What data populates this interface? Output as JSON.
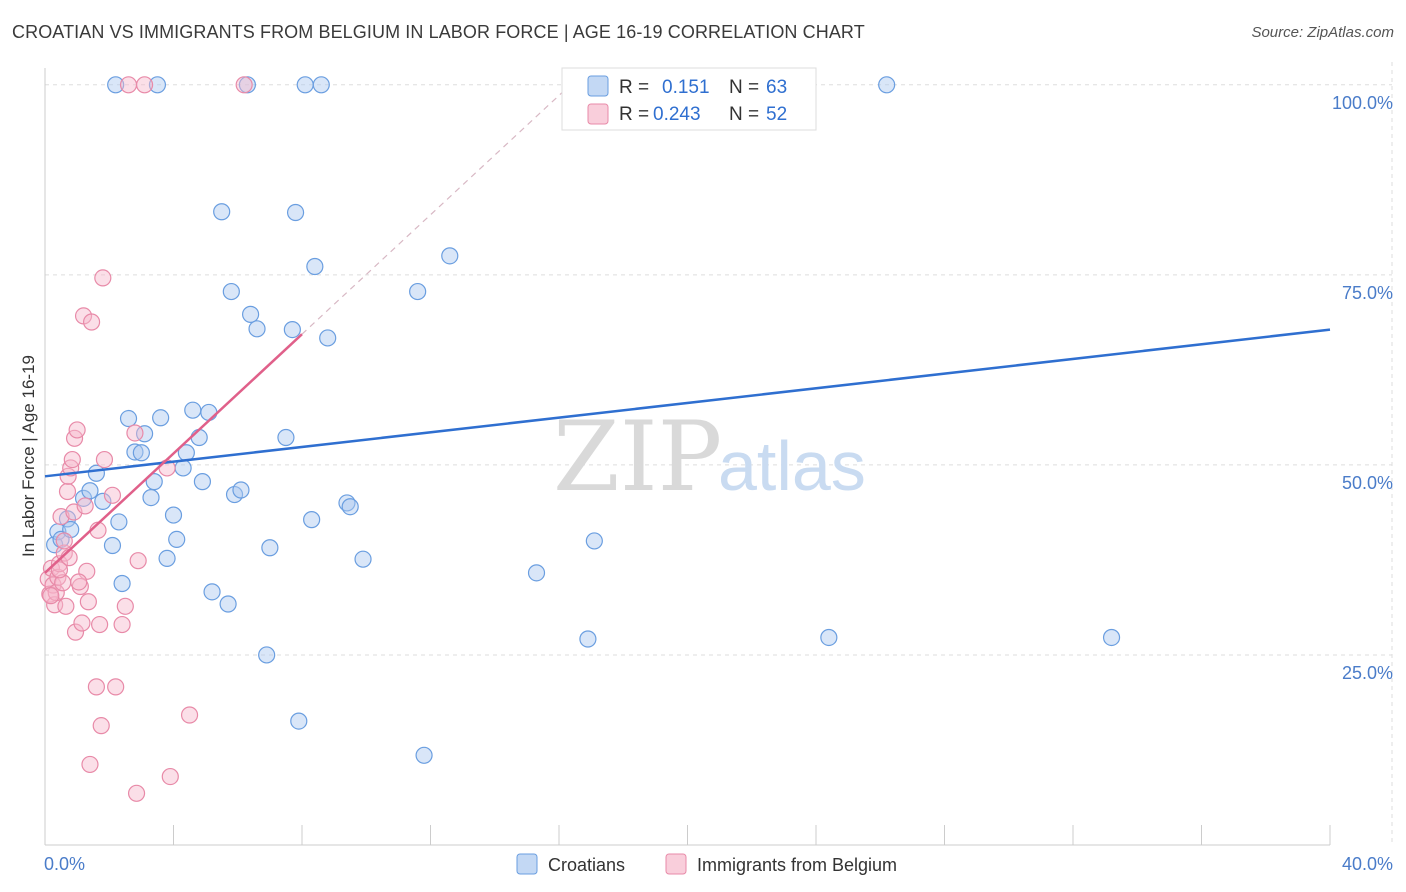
{
  "title": "CROATIAN VS IMMIGRANTS FROM BELGIUM IN LABOR FORCE | AGE 16-19 CORRELATION CHART",
  "source": "Source: ZipAtlas.com",
  "watermark": {
    "zip": "ZIP",
    "atlas": "atlas"
  },
  "legend": {
    "rows": [
      {
        "r_label": "R =",
        "r_value": "0.151",
        "n_label": "N =",
        "n_value": "63"
      },
      {
        "r_label": "R =",
        "r_value": "0.243",
        "n_label": "N =",
        "n_value": "52"
      }
    ]
  },
  "bottom_legend": [
    "Croatians",
    "Immigrants from Belgium"
  ],
  "colors": {
    "blue_fill": "#aac8ef",
    "blue_stroke": "#6a9ee0",
    "blue_line": "#2f6fd0",
    "pink_fill": "#f6b9cc",
    "pink_stroke": "#e88aa8",
    "pink_line": "#e0608a",
    "grid": "#dddddd",
    "tick_label": "#4a7cc9"
  },
  "chart_data": {
    "type": "scatter",
    "title": "CROATIAN VS IMMIGRANTS FROM BELGIUM IN LABOR FORCE | AGE 16-19 CORRELATION CHART",
    "xlabel": "",
    "ylabel": "In Labor Force | Age 16-19",
    "xlim": [
      0,
      40
    ],
    "ylim": [
      0,
      103
    ],
    "x_tick_labels": [
      "0.0%",
      "40.0%"
    ],
    "y_ticks": [
      25,
      50,
      75,
      100
    ],
    "y_tick_labels": [
      "25.0%",
      "50.0%",
      "75.0%",
      "100.0%"
    ],
    "grid": true,
    "legend_position": "top-center",
    "series": [
      {
        "name": "Croatians",
        "color": "#6a9ee0",
        "r": 0.151,
        "n": 63,
        "trend": {
          "x": [
            0,
            40
          ],
          "y": [
            48.5,
            67.8
          ]
        },
        "points": [
          [
            0.3,
            39.5
          ],
          [
            0.4,
            41.2
          ],
          [
            0.5,
            40.2
          ],
          [
            0.7,
            42.9
          ],
          [
            0.8,
            41.5
          ],
          [
            1.2,
            45.6
          ],
          [
            1.4,
            46.6
          ],
          [
            1.6,
            48.9
          ],
          [
            1.8,
            45.2
          ],
          [
            2.1,
            39.4
          ],
          [
            2.3,
            42.5
          ],
          [
            2.4,
            34.4
          ],
          [
            2.6,
            56.1
          ],
          [
            2.8,
            51.7
          ],
          [
            3.0,
            51.6
          ],
          [
            3.1,
            54.1
          ],
          [
            3.3,
            45.7
          ],
          [
            3.4,
            47.8
          ],
          [
            3.6,
            56.2
          ],
          [
            3.8,
            37.7
          ],
          [
            4.0,
            43.4
          ],
          [
            4.1,
            40.2
          ],
          [
            4.3,
            49.6
          ],
          [
            4.4,
            51.6
          ],
          [
            4.6,
            57.2
          ],
          [
            4.8,
            53.6
          ],
          [
            4.9,
            47.8
          ],
          [
            5.1,
            56.9
          ],
          [
            5.2,
            33.3
          ],
          [
            5.5,
            83.3
          ],
          [
            5.7,
            31.7
          ],
          [
            5.8,
            72.8
          ],
          [
            5.9,
            46.1
          ],
          [
            6.1,
            46.7
          ],
          [
            6.4,
            69.8
          ],
          [
            6.6,
            67.9
          ],
          [
            6.9,
            25.0
          ],
          [
            7.0,
            39.1
          ],
          [
            7.5,
            53.6
          ],
          [
            7.7,
            67.8
          ],
          [
            7.8,
            83.2
          ],
          [
            7.9,
            16.3
          ],
          [
            8.1,
            100.0
          ],
          [
            8.3,
            42.8
          ],
          [
            8.4,
            76.1
          ],
          [
            8.6,
            100.0
          ],
          [
            8.8,
            66.7
          ],
          [
            9.4,
            45.0
          ],
          [
            9.5,
            44.5
          ],
          [
            9.9,
            37.6
          ],
          [
            11.6,
            72.8
          ],
          [
            11.8,
            11.8
          ],
          [
            12.6,
            77.5
          ],
          [
            15.3,
            35.8
          ],
          [
            16.9,
            27.1
          ],
          [
            17.1,
            40.0
          ],
          [
            24.4,
            27.3
          ],
          [
            26.2,
            100.0
          ],
          [
            33.2,
            27.3
          ],
          [
            6.3,
            100.0
          ],
          [
            2.2,
            100.0
          ],
          [
            3.5,
            100.0
          ],
          [
            23.0,
            100.0
          ]
        ]
      },
      {
        "name": "Immigrants from Belgium",
        "color": "#e88aa8",
        "r": 0.243,
        "n": 52,
        "trend": {
          "x": [
            0,
            8.0
          ],
          "y": [
            35.8,
            67.2
          ]
        },
        "points": [
          [
            0.1,
            35.0
          ],
          [
            0.15,
            33.0
          ],
          [
            0.2,
            36.4
          ],
          [
            0.25,
            34.2
          ],
          [
            0.3,
            31.6
          ],
          [
            0.35,
            33.2
          ],
          [
            0.4,
            35.2
          ],
          [
            0.45,
            37.0
          ],
          [
            0.5,
            43.2
          ],
          [
            0.55,
            34.5
          ],
          [
            0.6,
            38.4
          ],
          [
            0.65,
            31.4
          ],
          [
            0.7,
            46.5
          ],
          [
            0.72,
            48.5
          ],
          [
            0.75,
            37.8
          ],
          [
            0.8,
            49.6
          ],
          [
            0.85,
            50.7
          ],
          [
            0.9,
            43.8
          ],
          [
            0.92,
            53.5
          ],
          [
            0.95,
            28.0
          ],
          [
            1.0,
            54.6
          ],
          [
            1.1,
            34.0
          ],
          [
            1.15,
            29.2
          ],
          [
            1.2,
            69.6
          ],
          [
            1.3,
            36.0
          ],
          [
            1.35,
            32.0
          ],
          [
            1.4,
            10.6
          ],
          [
            1.45,
            68.8
          ],
          [
            1.6,
            20.8
          ],
          [
            1.65,
            41.4
          ],
          [
            1.7,
            29.0
          ],
          [
            1.75,
            15.7
          ],
          [
            1.8,
            74.6
          ],
          [
            1.85,
            50.7
          ],
          [
            2.1,
            46.0
          ],
          [
            2.2,
            20.8
          ],
          [
            2.4,
            29.0
          ],
          [
            2.5,
            31.4
          ],
          [
            2.6,
            100.0
          ],
          [
            2.8,
            54.2
          ],
          [
            2.85,
            6.8
          ],
          [
            2.9,
            37.4
          ],
          [
            3.1,
            100.0
          ],
          [
            3.8,
            49.6
          ],
          [
            3.9,
            9.0
          ],
          [
            4.5,
            17.1
          ],
          [
            6.2,
            100.0
          ],
          [
            0.45,
            36.2
          ],
          [
            1.05,
            34.6
          ],
          [
            1.25,
            44.6
          ],
          [
            0.18,
            32.8
          ],
          [
            0.6,
            40.0
          ]
        ]
      }
    ]
  }
}
